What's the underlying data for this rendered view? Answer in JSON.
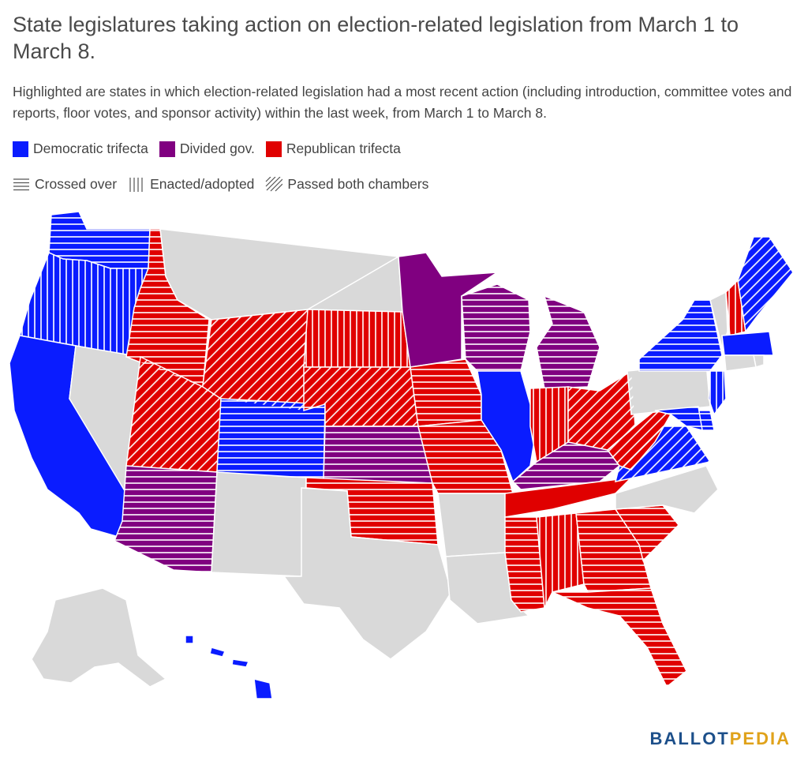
{
  "title": "State legislatures taking action on election-related legislation from March 1 to March 8.",
  "subtitle": "Highlighted are states in which election-related legislation had a most recent action (including introduction, committee votes and reports, floor votes, and sponsor activity) within the last week, from March 1 to March 8.",
  "legend": {
    "colors": [
      {
        "label": "Democratic trifecta",
        "color": "#0a1cff"
      },
      {
        "label": "Divided gov.",
        "color": "#800080"
      },
      {
        "label": "Republican trifecta",
        "color": "#e00000"
      }
    ],
    "patterns": [
      {
        "label": "Crossed over",
        "pattern": "horizontal"
      },
      {
        "label": "Enacted/adopted",
        "pattern": "vertical"
      },
      {
        "label": "Passed both chambers",
        "pattern": "diagonal"
      }
    ]
  },
  "colors": {
    "dem": "#0a1cff",
    "div": "#800080",
    "rep": "#e00000",
    "none": "#d9d9d9",
    "border": "#ffffff"
  },
  "states": [
    {
      "code": "WA",
      "gov": "dem",
      "status": "horizontal"
    },
    {
      "code": "OR",
      "gov": "dem",
      "status": "vertical"
    },
    {
      "code": "CA",
      "gov": "dem",
      "status": "none"
    },
    {
      "code": "NV",
      "gov": "none",
      "status": "none"
    },
    {
      "code": "ID",
      "gov": "rep",
      "status": "horizontal"
    },
    {
      "code": "MT",
      "gov": "none",
      "status": "none"
    },
    {
      "code": "WY",
      "gov": "rep",
      "status": "diagonal"
    },
    {
      "code": "UT",
      "gov": "rep",
      "status": "diagonal"
    },
    {
      "code": "AZ",
      "gov": "div",
      "status": "horizontal"
    },
    {
      "code": "CO",
      "gov": "dem",
      "status": "horizontal"
    },
    {
      "code": "NM",
      "gov": "none",
      "status": "none"
    },
    {
      "code": "ND",
      "gov": "none",
      "status": "none"
    },
    {
      "code": "SD",
      "gov": "rep",
      "status": "vertical"
    },
    {
      "code": "NE",
      "gov": "rep",
      "status": "diagonal"
    },
    {
      "code": "KS",
      "gov": "div",
      "status": "horizontal"
    },
    {
      "code": "OK",
      "gov": "rep",
      "status": "horizontal"
    },
    {
      "code": "TX",
      "gov": "none",
      "status": "none"
    },
    {
      "code": "MN",
      "gov": "div",
      "status": "none"
    },
    {
      "code": "IA",
      "gov": "rep",
      "status": "horizontal"
    },
    {
      "code": "MO",
      "gov": "rep",
      "status": "horizontal"
    },
    {
      "code": "AR",
      "gov": "none",
      "status": "none"
    },
    {
      "code": "LA",
      "gov": "none",
      "status": "none"
    },
    {
      "code": "WI",
      "gov": "div",
      "status": "horizontal"
    },
    {
      "code": "IL",
      "gov": "dem",
      "status": "none"
    },
    {
      "code": "MI",
      "gov": "div",
      "status": "horizontal"
    },
    {
      "code": "IN",
      "gov": "rep",
      "status": "vertical"
    },
    {
      "code": "OH",
      "gov": "rep",
      "status": "diagonal"
    },
    {
      "code": "KY",
      "gov": "div",
      "status": "horizontal"
    },
    {
      "code": "TN",
      "gov": "rep",
      "status": "none"
    },
    {
      "code": "MS",
      "gov": "rep",
      "status": "horizontal"
    },
    {
      "code": "AL",
      "gov": "rep",
      "status": "vertical"
    },
    {
      "code": "GA",
      "gov": "rep",
      "status": "horizontal"
    },
    {
      "code": "FL",
      "gov": "rep",
      "status": "horizontal"
    },
    {
      "code": "SC",
      "gov": "rep",
      "status": "horizontal"
    },
    {
      "code": "NC",
      "gov": "none",
      "status": "none"
    },
    {
      "code": "VA",
      "gov": "dem",
      "status": "diagonal"
    },
    {
      "code": "WV",
      "gov": "rep",
      "status": "diagonal"
    },
    {
      "code": "PA",
      "gov": "none",
      "status": "none"
    },
    {
      "code": "NY",
      "gov": "dem",
      "status": "horizontal"
    },
    {
      "code": "VT",
      "gov": "none",
      "status": "none"
    },
    {
      "code": "NH",
      "gov": "rep",
      "status": "vertical"
    },
    {
      "code": "ME",
      "gov": "dem",
      "status": "diagonal"
    },
    {
      "code": "MA",
      "gov": "dem",
      "status": "none"
    },
    {
      "code": "RI",
      "gov": "none",
      "status": "none"
    },
    {
      "code": "CT",
      "gov": "none",
      "status": "none"
    },
    {
      "code": "NJ",
      "gov": "dem",
      "status": "vertical"
    },
    {
      "code": "DE",
      "gov": "dem",
      "status": "horizontal"
    },
    {
      "code": "MD",
      "gov": "dem",
      "status": "horizontal"
    },
    {
      "code": "AK",
      "gov": "none",
      "status": "none"
    },
    {
      "code": "HI",
      "gov": "dem",
      "status": "none"
    }
  ],
  "brand": {
    "part1": "BALLOT",
    "part2": "PEDIA"
  }
}
